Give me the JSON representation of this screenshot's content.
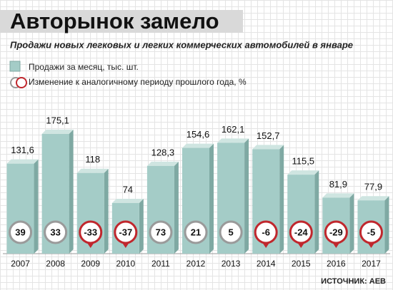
{
  "chart_data": {
    "type": "bar",
    "title": "Авторынок замело",
    "subtitle": "Продажи новых легковых и легких коммерческих автомобилей в январе",
    "categories": [
      "2007",
      "2008",
      "2009",
      "2010",
      "2011",
      "2012",
      "2013",
      "2014",
      "2015",
      "2016",
      "2017"
    ],
    "series": [
      {
        "name": "Продажи за месяц, тыс. шт.",
        "color": "#a4ccc7",
        "values": [
          131.6,
          175.1,
          118,
          74,
          128.3,
          154.6,
          162.1,
          152.7,
          115.5,
          81.9,
          77.9
        ],
        "value_labels": [
          "131,6",
          "175,1",
          "118",
          "74",
          "128,3",
          "154,6",
          "162,1",
          "152,7",
          "115,5",
          "81,9",
          "77,9"
        ]
      },
      {
        "name": "Изменение к аналогичному периоду прошлого года, %",
        "color": "#ffffff",
        "negative_color": "#c0272d",
        "values": [
          39,
          33,
          -33,
          -37,
          73,
          21,
          5,
          -6,
          -24,
          -29,
          -5
        ]
      }
    ],
    "source": "ИСТОЧНИК: АЕВ"
  }
}
